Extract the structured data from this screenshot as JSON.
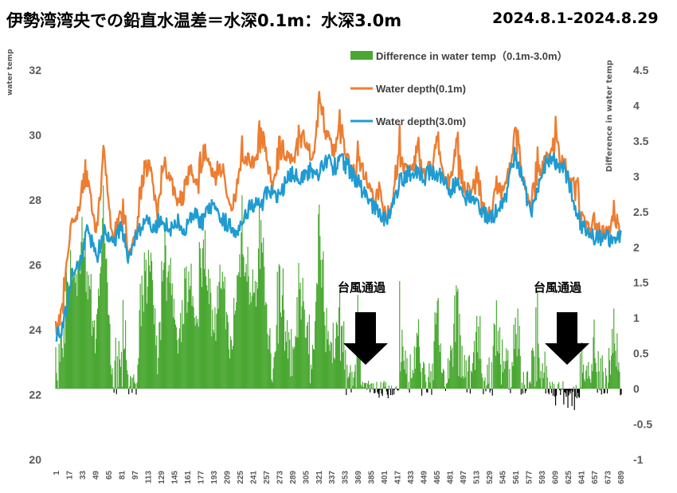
{
  "title": "伊勢湾湾央での鉛直水温差＝水深0.1m：水深3.0m",
  "date_range": "2024.8.1-2024.8.29",
  "annotations": [
    "台風通過",
    "台風通過"
  ],
  "colors": {
    "bars": "#4aa832",
    "shallow": "#ed7d31",
    "deep": "#1f9bd1",
    "arrow": "#000000"
  },
  "chart_data": {
    "type": "bar+line",
    "ylabel": "water temp",
    "y2label": "Difference in water temp",
    "ylim": [
      20,
      32
    ],
    "yticks": [
      "20",
      "22",
      "24",
      "26",
      "28",
      "30",
      "32"
    ],
    "y2lim": [
      -1,
      4.5
    ],
    "y2ticks": [
      "-1",
      "-0.5",
      "0",
      "0.5",
      "1",
      "1.5",
      "2",
      "2.5",
      "3",
      "3.5",
      "4",
      "4.5"
    ],
    "x_count": 690,
    "xticks": [
      "1",
      "17",
      "33",
      "49",
      "65",
      "81",
      "97",
      "113",
      "129",
      "145",
      "161",
      "177",
      "193",
      "209",
      "225",
      "241",
      "257",
      "273",
      "289",
      "305",
      "321",
      "337",
      "353",
      "369",
      "385",
      "401",
      "417",
      "433",
      "449",
      "465",
      "481",
      "497",
      "513",
      "529",
      "545",
      "561",
      "577",
      "593",
      "609",
      "625",
      "641",
      "657",
      "673",
      "689"
    ],
    "legend": [
      "Difference in water temp（0.1m-3.0m）",
      "Water depth(0.1m)",
      "Water depth(3.0m)"
    ],
    "series_anchors": {
      "shallow_0.1m": [
        [
          1,
          24.1
        ],
        [
          10,
          24.3
        ],
        [
          20,
          27.5
        ],
        [
          30,
          27.6
        ],
        [
          40,
          28.6
        ],
        [
          50,
          27.0
        ],
        [
          60,
          29.0
        ],
        [
          70,
          26.8
        ],
        [
          80,
          27.5
        ],
        [
          90,
          26.4
        ],
        [
          100,
          27.1
        ],
        [
          110,
          28.5
        ],
        [
          115,
          29.3
        ],
        [
          125,
          27.5
        ],
        [
          135,
          28.9
        ],
        [
          145,
          28.3
        ],
        [
          155,
          27.6
        ],
        [
          165,
          29.1
        ],
        [
          175,
          28.2
        ],
        [
          185,
          29.4
        ],
        [
          195,
          28.7
        ],
        [
          205,
          28.4
        ],
        [
          215,
          27.8
        ],
        [
          225,
          28.6
        ],
        [
          235,
          29.3
        ],
        [
          245,
          29.1
        ],
        [
          255,
          29.7
        ],
        [
          265,
          28.4
        ],
        [
          275,
          29.2
        ],
        [
          285,
          29.4
        ],
        [
          295,
          29.3
        ],
        [
          305,
          29.7
        ],
        [
          315,
          29.3
        ],
        [
          322,
          30.7
        ],
        [
          330,
          30.1
        ],
        [
          340,
          29.4
        ],
        [
          350,
          29.7
        ],
        [
          360,
          29.0
        ],
        [
          370,
          28.8
        ],
        [
          380,
          28.7
        ],
        [
          390,
          27.8
        ],
        [
          400,
          27.5
        ],
        [
          410,
          27.8
        ],
        [
          420,
          29.1
        ],
        [
          430,
          29.0
        ],
        [
          440,
          29.0
        ],
        [
          450,
          28.8
        ],
        [
          460,
          29.1
        ],
        [
          470,
          28.9
        ],
        [
          480,
          28.5
        ],
        [
          490,
          29.0
        ],
        [
          500,
          28.3
        ],
        [
          510,
          28.4
        ],
        [
          520,
          27.8
        ],
        [
          530,
          27.5
        ],
        [
          540,
          28.0
        ],
        [
          550,
          28.5
        ],
        [
          560,
          29.6
        ],
        [
          570,
          28.8
        ],
        [
          580,
          27.6
        ],
        [
          590,
          28.7
        ],
        [
          600,
          29.5
        ],
        [
          610,
          29.3
        ],
        [
          620,
          29.2
        ],
        [
          630,
          28.3
        ],
        [
          640,
          27.5
        ],
        [
          650,
          27.1
        ],
        [
          660,
          26.9
        ],
        [
          670,
          27.0
        ],
        [
          680,
          27.0
        ],
        [
          690,
          26.9
        ]
      ],
      "deep_3.0m": [
        [
          1,
          23.9
        ],
        [
          10,
          24.0
        ],
        [
          20,
          25.6
        ],
        [
          30,
          26.0
        ],
        [
          40,
          27.2
        ],
        [
          50,
          26.2
        ],
        [
          60,
          27.0
        ],
        [
          70,
          26.6
        ],
        [
          80,
          27.2
        ],
        [
          90,
          26.2
        ],
        [
          100,
          27.0
        ],
        [
          110,
          27.4
        ],
        [
          120,
          27.0
        ],
        [
          130,
          27.5
        ],
        [
          140,
          27.0
        ],
        [
          150,
          27.3
        ],
        [
          160,
          27.1
        ],
        [
          170,
          27.6
        ],
        [
          180,
          27.3
        ],
        [
          190,
          27.8
        ],
        [
          200,
          27.4
        ],
        [
          210,
          27.3
        ],
        [
          220,
          27.0
        ],
        [
          230,
          27.5
        ],
        [
          240,
          27.9
        ],
        [
          250,
          27.8
        ],
        [
          260,
          28.3
        ],
        [
          270,
          28.0
        ],
        [
          280,
          28.5
        ],
        [
          290,
          28.8
        ],
        [
          300,
          28.7
        ],
        [
          310,
          28.9
        ],
        [
          320,
          28.8
        ],
        [
          330,
          29.3
        ],
        [
          340,
          29.0
        ],
        [
          350,
          29.2
        ],
        [
          360,
          28.9
        ],
        [
          370,
          28.5
        ],
        [
          380,
          28.1
        ],
        [
          390,
          27.7
        ],
        [
          400,
          27.4
        ],
        [
          410,
          27.6
        ],
        [
          420,
          28.6
        ],
        [
          430,
          28.8
        ],
        [
          440,
          28.9
        ],
        [
          450,
          28.7
        ],
        [
          460,
          28.9
        ],
        [
          470,
          28.8
        ],
        [
          480,
          28.2
        ],
        [
          490,
          28.6
        ],
        [
          500,
          28.0
        ],
        [
          510,
          28.1
        ],
        [
          520,
          27.6
        ],
        [
          530,
          27.4
        ],
        [
          540,
          27.7
        ],
        [
          550,
          28.2
        ],
        [
          560,
          29.4
        ],
        [
          570,
          28.6
        ],
        [
          580,
          27.5
        ],
        [
          590,
          28.5
        ],
        [
          600,
          29.3
        ],
        [
          610,
          29.2
        ],
        [
          620,
          29.0
        ],
        [
          630,
          28.2
        ],
        [
          640,
          27.3
        ],
        [
          650,
          27.0
        ],
        [
          660,
          26.8
        ],
        [
          670,
          26.8
        ],
        [
          680,
          26.8
        ],
        [
          690,
          26.8
        ]
      ]
    }
  }
}
